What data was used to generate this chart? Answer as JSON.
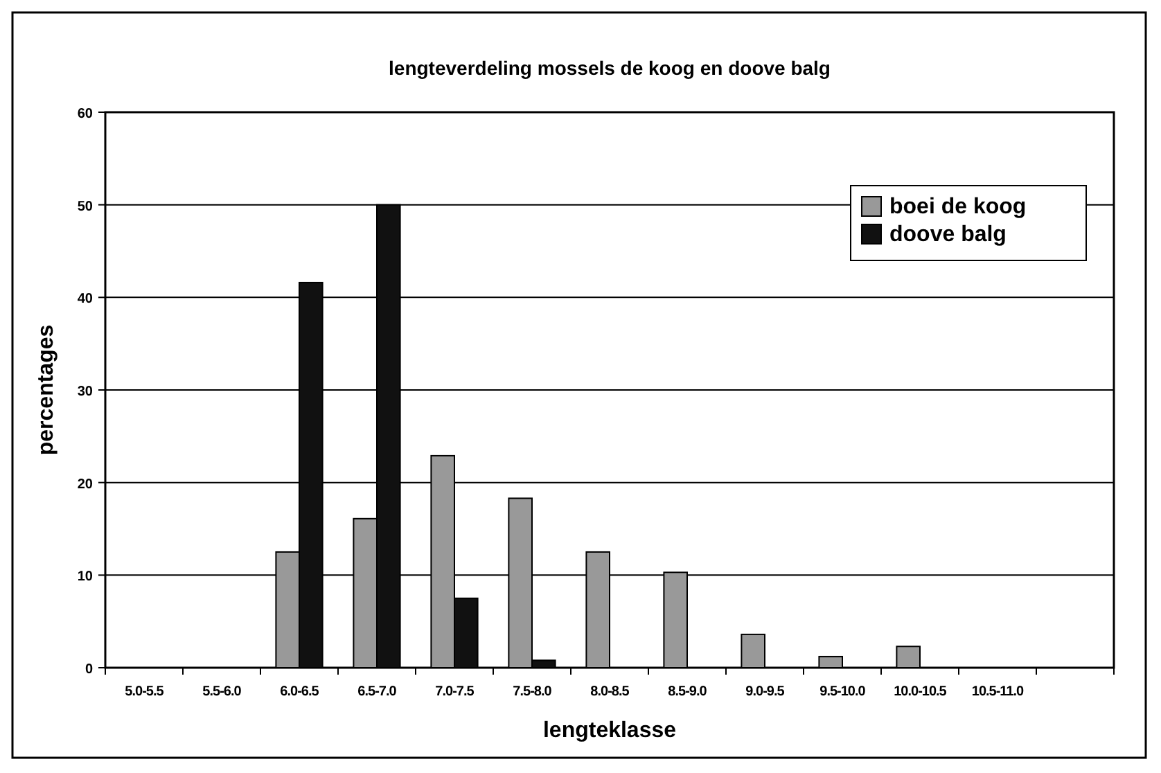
{
  "chart_data": {
    "type": "bar",
    "title": "lengteverdeling mossels de koog en doove balg",
    "xlabel": "lengteklasse",
    "ylabel": "percentages",
    "categories": [
      "5.0-5.5",
      "5.5-6.0",
      "6.0-6.5",
      "6.5-7.0",
      "7.0-7.5",
      "7.5-8.0",
      "8.0-8.5",
      "8.5-9.0",
      "9.0-9.5",
      "9.5-10.0",
      "10.0-10.5",
      "10.5-11.0",
      null
    ],
    "series": [
      {
        "name": "boei de koog",
        "color": "#999999",
        "values": [
          0,
          0,
          12.5,
          16.1,
          22.9,
          18.3,
          12.5,
          10.3,
          3.6,
          1.2,
          2.3,
          0,
          null
        ]
      },
      {
        "name": "doove balg",
        "color": "#111111",
        "values": [
          0,
          0,
          41.6,
          50,
          7.5,
          0.8,
          0,
          0,
          0,
          0,
          0,
          0,
          null
        ]
      }
    ],
    "ylim": [
      0,
      60
    ],
    "yticks": [
      0,
      10,
      20,
      30,
      40,
      50,
      60
    ],
    "grid": "y",
    "legend": "top right"
  }
}
